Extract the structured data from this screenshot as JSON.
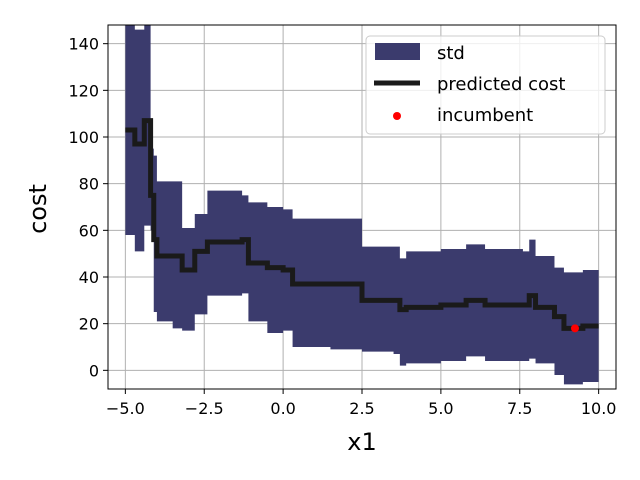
{
  "chart_data": {
    "type": "line",
    "xlabel": "x1",
    "ylabel": "cost",
    "xlim": [
      -5.55,
      10.55
    ],
    "ylim": [
      -8,
      148
    ],
    "xticks": [
      -5.0,
      -2.5,
      0.0,
      2.5,
      5.0,
      7.5,
      10.0
    ],
    "xtick_labels": [
      "−5.0",
      "−2.5",
      "0.0",
      "2.5",
      "5.0",
      "7.5",
      "10.0"
    ],
    "yticks": [
      0,
      20,
      40,
      60,
      80,
      100,
      120,
      140
    ],
    "ytick_labels": [
      "0",
      "20",
      "40",
      "60",
      "80",
      "100",
      "120",
      "140"
    ],
    "grid": true,
    "legend_position": "top-right",
    "colors": {
      "std": "#3b3b6d",
      "predicted": "#1a1a1a",
      "incumbent": "#ff0000"
    },
    "series": [
      {
        "name": "predicted cost",
        "kind": "step-line",
        "x": [
          -5.0,
          -4.7,
          -4.4,
          -4.2,
          -4.1,
          -4.0,
          -3.5,
          -3.2,
          -2.8,
          -2.4,
          -1.5,
          -1.3,
          -1.1,
          -0.5,
          0.0,
          0.3,
          1.5,
          2.5,
          3.5,
          3.7,
          3.9,
          5.0,
          5.8,
          6.4,
          7.6,
          7.8,
          8.0,
          8.3,
          8.6,
          8.9,
          9.5,
          10.0
        ],
        "y": [
          103,
          97,
          107,
          75,
          56,
          49,
          49,
          43,
          51,
          55,
          55,
          56,
          46,
          44,
          43,
          37,
          37,
          30,
          30,
          26,
          27,
          28,
          30,
          28,
          28,
          32,
          27,
          27,
          23,
          18,
          19,
          19
        ]
      },
      {
        "name": "std",
        "kind": "band",
        "x": [
          -5.0,
          -4.7,
          -4.4,
          -4.2,
          -4.1,
          -4.0,
          -3.5,
          -3.2,
          -2.8,
          -2.4,
          -1.5,
          -1.3,
          -1.1,
          -0.5,
          0.0,
          0.3,
          1.5,
          2.5,
          3.5,
          3.7,
          3.9,
          5.0,
          5.8,
          6.4,
          7.6,
          7.8,
          8.0,
          8.3,
          8.6,
          8.9,
          9.5,
          10.0
        ],
        "upper": [
          148,
          146,
          150,
          95,
          92,
          81,
          81,
          61,
          67,
          77,
          77,
          75,
          72,
          70,
          69,
          65,
          65,
          53,
          53,
          48,
          51,
          52,
          54,
          52,
          51,
          56,
          49,
          49,
          44,
          42,
          43,
          43
        ],
        "lower": [
          58,
          51,
          62,
          60,
          25,
          21,
          18,
          17,
          24,
          32,
          32,
          33,
          21,
          16,
          17,
          10,
          9,
          8,
          7,
          2,
          3,
          4,
          6,
          4,
          4,
          5,
          3,
          3,
          -2,
          -6,
          -5,
          -5
        ]
      },
      {
        "name": "incumbent",
        "kind": "scatter",
        "points": [
          {
            "x": 9.25,
            "y": 18
          }
        ]
      }
    ]
  }
}
